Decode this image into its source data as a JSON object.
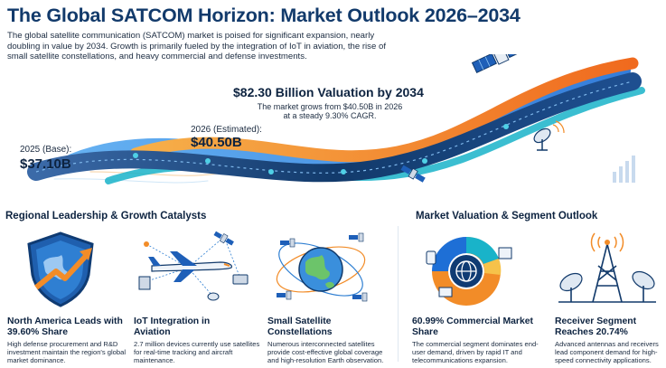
{
  "header": {
    "title": "The Global SATCOM Horizon: Market Outlook 2026–2034",
    "intro": "The global satellite communication (SATCOM) market is poised for significant expansion, nearly doubling in value by 2034. Growth is primarily fueled by the integration of IoT in aviation, the rise of small satellite constellations, and heavy commercial and defense investments."
  },
  "timeline": {
    "base_label": "2025 (Base):",
    "base_value": "$37.10B",
    "est_label": "2026 (Estimated):",
    "est_value": "$40.50B",
    "target_title": "$82.30 Billion Valuation by 2034",
    "target_desc": "The market grows from $40.50B in 2026 at a steady 9.30% CAGR."
  },
  "sections": {
    "left_title": "Regional Leadership & Growth Catalysts",
    "right_title": "Market Valuation & Segment Outlook"
  },
  "cards": [
    {
      "heading": "North America Leads with 39.60% Share",
      "desc": "High defense procurement and R&D investment maintain the region's global market dominance.",
      "icon": "shield-arrow-icon"
    },
    {
      "heading": "IoT Integration in Aviation",
      "desc": "2.7 million devices currently use satellites for real-time tracking and aircraft maintenance.",
      "icon": "airplane-network-icon"
    },
    {
      "heading": "Small Satellite Constellations",
      "desc": "Numerous interconnected satellites provide cost-effective global coverage and high-resolution Earth observation.",
      "icon": "globe-constellation-icon"
    },
    {
      "heading": "60.99% Commercial Market Share",
      "desc": "The commercial segment dominates end-user demand, driven by rapid IT and telecommunications expansion.",
      "icon": "donut-globe-icon"
    },
    {
      "heading": "Receiver Segment Reaches 20.74%",
      "desc": "Advanced antennas and receivers lead component demand for high-speed connectivity applications.",
      "icon": "antenna-tower-icon"
    }
  ],
  "colors": {
    "navy": "#123a6b",
    "blue": "#1e6fd6",
    "orange": "#f28c28",
    "teal": "#19b3c9",
    "cyan": "#4fd0e6"
  }
}
